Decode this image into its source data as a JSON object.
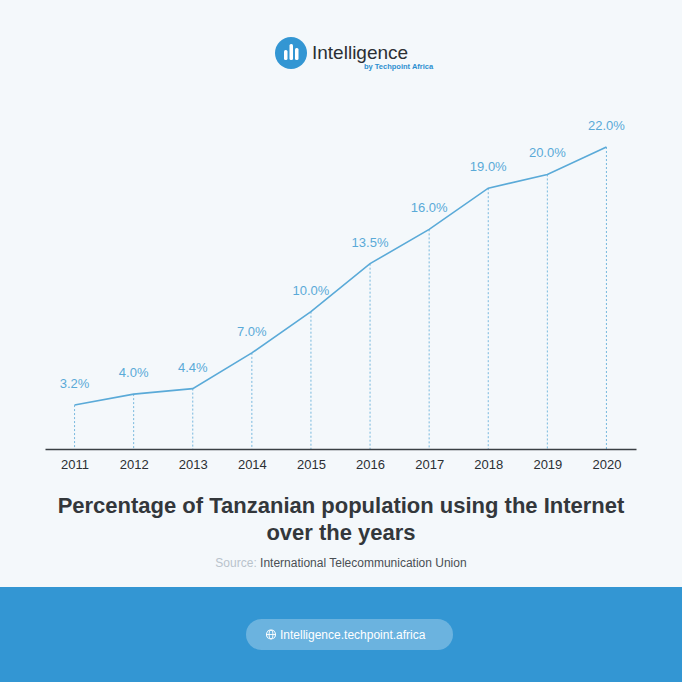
{
  "chart_data": {
    "type": "line",
    "title": "Percentage of Tanzanian population using the Internet over the years",
    "categories": [
      "2011",
      "2012",
      "2013",
      "2014",
      "2015",
      "2016",
      "2017",
      "2018",
      "2019",
      "2020"
    ],
    "values": [
      3.2,
      4.0,
      4.4,
      7.0,
      10.0,
      13.5,
      16.0,
      19.0,
      20.0,
      22.0
    ],
    "value_labels": [
      "3.2%",
      "4.0%",
      "4.4%",
      "7.0%",
      "10.0%",
      "13.5%",
      "16.0%",
      "19.0%",
      "20.0%",
      "22.0%"
    ],
    "color": "#5aaad8",
    "ylim": [
      0,
      22
    ],
    "data_labels": true,
    "tick_labels": "x"
  },
  "source": {
    "label": "Source:",
    "text": "International Telecommunication Union"
  },
  "header": {
    "brand": "Intelligence",
    "tagline": "by Techpoint Africa"
  },
  "footer": {
    "link": "Intelligence.techpoint.africa"
  }
}
